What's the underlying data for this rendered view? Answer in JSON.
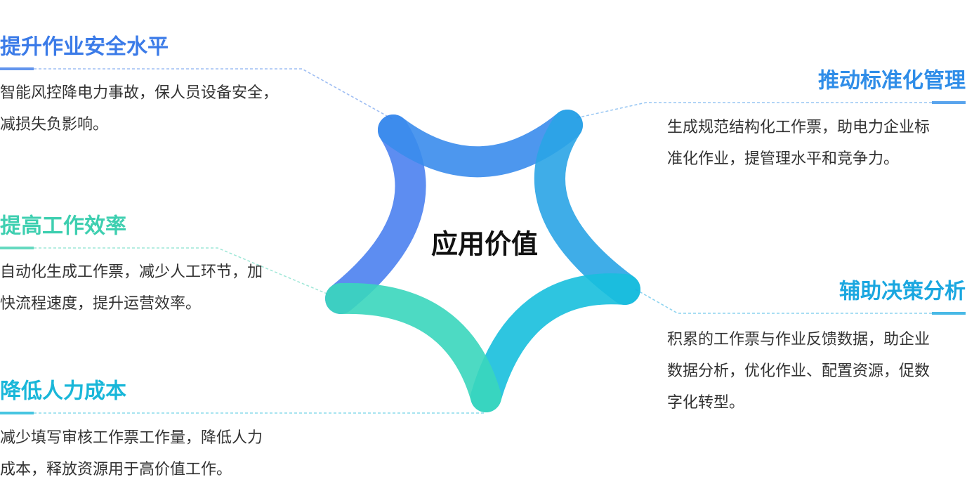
{
  "center": {
    "label": "应用价值"
  },
  "items": [
    {
      "title": "提升作业安全水平",
      "lines": [
        "智能风控降电力事故，保人员设备安全，",
        "减损失负影响。"
      ]
    },
    {
      "title": "提高工作效率",
      "lines": [
        "自动化生成工作票，减少人工环节，加",
        "快流程速度，提升运营效率。"
      ]
    },
    {
      "title": "降低人力成本",
      "lines": [
        "减少填写审核工作票工作量，降低人力",
        "成本，释放资源用于高价值工作。"
      ]
    },
    {
      "title": "推动标准化管理",
      "lines": [
        "生成规范结构化工作票，助电力企业标",
        "准化作业，提管理水平和竞争力。"
      ]
    },
    {
      "title": "辅助决策分析",
      "lines": [
        "积累的工作票与作业反馈数据，助企业",
        "数据分析，优化作业、配置资源，促数",
        "字化转型。"
      ]
    }
  ]
}
